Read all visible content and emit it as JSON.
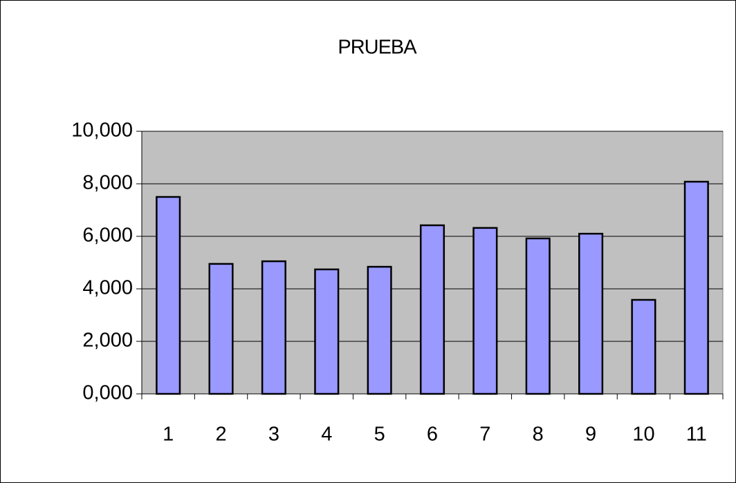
{
  "chart_data": {
    "type": "bar",
    "title": "PRUEBA",
    "categories": [
      "1",
      "2",
      "3",
      "4",
      "5",
      "6",
      "7",
      "8",
      "9",
      "10",
      "11"
    ],
    "values": [
      7.5,
      4.95,
      5.05,
      4.74,
      4.84,
      6.42,
      6.32,
      5.92,
      6.1,
      3.58,
      8.08
    ],
    "color": "#9999ff",
    "ylim": [
      0,
      10
    ],
    "yticks": [
      {
        "value": 0,
        "label": "0,000"
      },
      {
        "value": 2,
        "label": "2,000"
      },
      {
        "value": 4,
        "label": "4,000"
      },
      {
        "value": 6,
        "label": "6,000"
      },
      {
        "value": 8,
        "label": "8,000"
      },
      {
        "value": 10,
        "label": "10,000"
      }
    ],
    "grid": true
  }
}
